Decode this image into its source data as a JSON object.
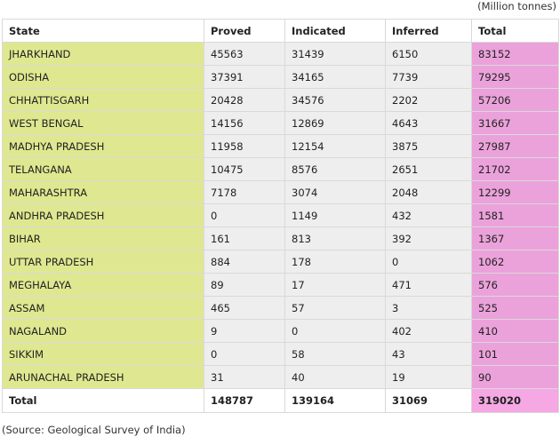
{
  "unit_note": "(Million tonnes)",
  "columns": [
    "State",
    "Proved",
    "Indicated",
    "Inferred",
    "Total"
  ],
  "rows": [
    [
      "JHARKHAND",
      "45563",
      "31439",
      "6150",
      "83152"
    ],
    [
      "ODISHA",
      "37391",
      "34165",
      "7739",
      "79295"
    ],
    [
      "CHHATTISGARH",
      "20428",
      "34576",
      "2202",
      "57206"
    ],
    [
      "WEST BENGAL",
      "14156",
      "12869",
      "4643",
      "31667"
    ],
    [
      "MADHYA PRADESH",
      "11958",
      "12154",
      "3875",
      "27987"
    ],
    [
      "TELANGANA",
      "10475",
      "8576",
      "2651",
      "21702"
    ],
    [
      "MAHARASHTRA",
      "7178",
      "3074",
      "2048",
      "12299"
    ],
    [
      "ANDHRA PRADESH",
      "0",
      "1149",
      "432",
      "1581"
    ],
    [
      "BIHAR",
      "161",
      "813",
      "392",
      "1367"
    ],
    [
      "UTTAR PRADESH",
      "884",
      "178",
      "0",
      "1062"
    ],
    [
      "MEGHALAYA",
      "89",
      "17",
      "471",
      "576"
    ],
    [
      "ASSAM",
      "465",
      "57",
      "3",
      "525"
    ],
    [
      "NAGALAND",
      "9",
      "0",
      "402",
      "410"
    ],
    [
      "SIKKIM",
      "0",
      "58",
      "43",
      "101"
    ],
    [
      "ARUNACHAL PRADESH",
      "31",
      "40",
      "19",
      "90"
    ]
  ],
  "total_row": [
    "Total",
    "148787",
    "139164",
    "31069",
    "319020"
  ],
  "source": "(Source: Geological Survey of India)",
  "colors": {
    "state_column": "#dfe890",
    "total_column": "#eba2db",
    "total_cell": "#f5a8e3",
    "value_cells": "#eeeeee"
  }
}
